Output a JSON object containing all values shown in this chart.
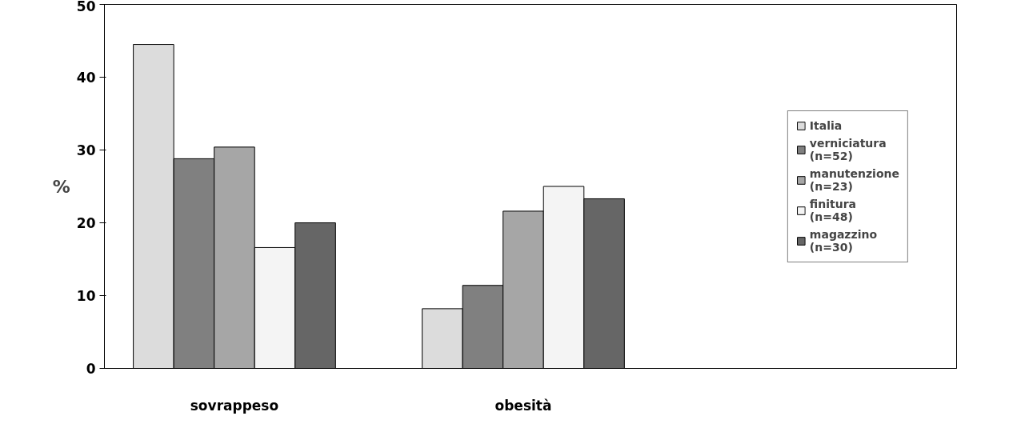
{
  "chart_data": {
    "type": "bar",
    "ylabel": "%",
    "categories": [
      "sovrappeso",
      "obesità"
    ],
    "series": [
      {
        "name": "Italia",
        "color": "#dcdcdc",
        "values": [
          44.5,
          8.2
        ]
      },
      {
        "name": "verniciatura\n(n=52)",
        "color": "#808080",
        "values": [
          28.8,
          11.4
        ]
      },
      {
        "name": "manutenzione\n(n=23)",
        "color": "#a6a6a6",
        "values": [
          30.4,
          21.6
        ]
      },
      {
        "name": "finitura\n(n=48)",
        "color": "#f4f4f4",
        "values": [
          16.6,
          25.0
        ]
      },
      {
        "name": "magazzino\n(n=30)",
        "color": "#666666",
        "values": [
          20.0,
          23.3
        ]
      }
    ],
    "ylim": [
      0,
      50
    ],
    "yticks": [
      0,
      10,
      20,
      30,
      40,
      50
    ],
    "grid": false,
    "legend": "right"
  }
}
